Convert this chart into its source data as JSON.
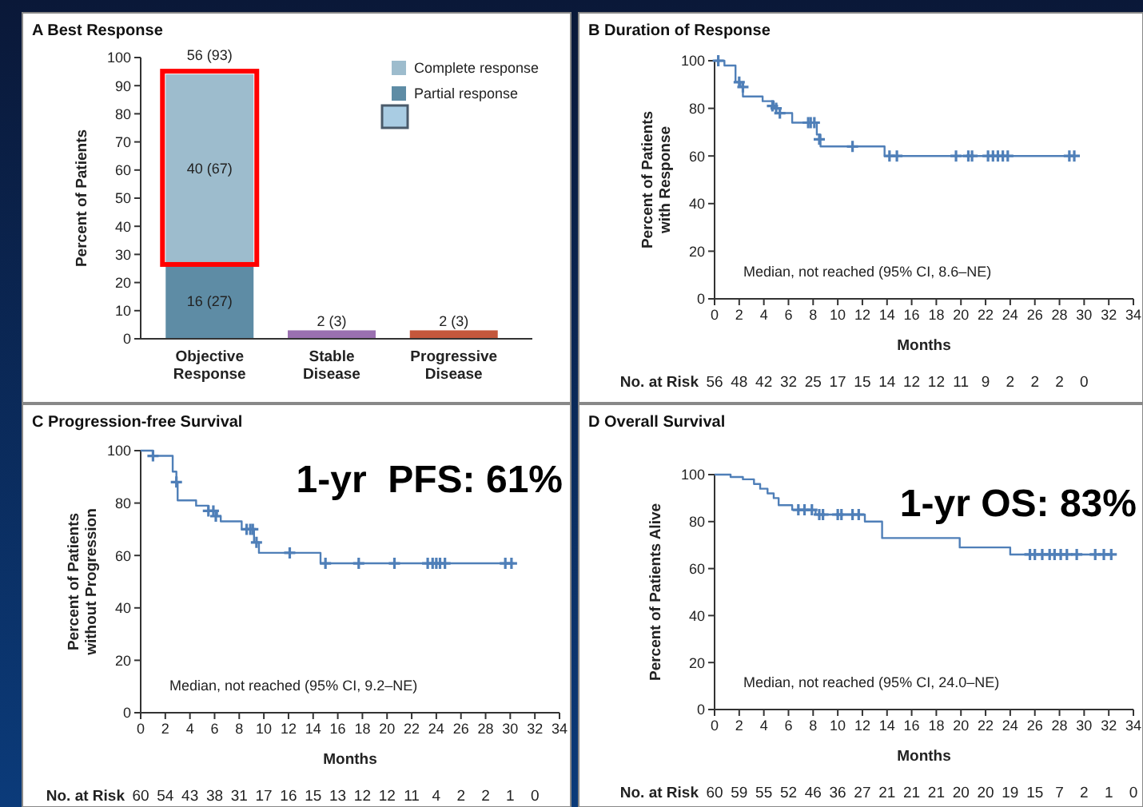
{
  "chart_data": [
    {
      "type": "bar",
      "title": "A Best Response",
      "ylabel": "Percent of Patients",
      "categories": [
        "Objective Response",
        "Stable Disease",
        "Progressive Disease"
      ],
      "stacked": true,
      "ylim": [
        0,
        100
      ],
      "yticks": [
        0,
        10,
        20,
        30,
        40,
        50,
        60,
        70,
        80,
        90,
        100
      ],
      "legend": "top right",
      "series": [
        {
          "name": "Partial response",
          "color": "#5e8ca5",
          "values": [
            27,
            null,
            null
          ],
          "value_labels": [
            "16 (27)",
            null,
            null
          ]
        },
        {
          "name": "Complete response",
          "color": "#9dbccd",
          "values": [
            67,
            null,
            null
          ],
          "value_labels": [
            "40 (67)",
            null,
            null
          ]
        },
        {
          "colors": [
            null,
            "#9a70b0",
            "#c4573c"
          ],
          "values": [
            null,
            3,
            3
          ],
          "value_labels": [
            null,
            "2 (3)",
            "2 (3)"
          ]
        }
      ],
      "totals": [
        "56 (93)",
        null,
        null
      ]
    },
    {
      "type": "step",
      "title": "B Duration of Response",
      "xlabel": "Months",
      "ylabel": "Percent of Patients with Response",
      "xlim": [
        0,
        34
      ],
      "xticks": [
        0,
        2,
        4,
        6,
        8,
        10,
        12,
        14,
        16,
        18,
        20,
        22,
        24,
        26,
        28,
        30,
        32,
        34
      ],
      "ylim": [
        0,
        100
      ],
      "yticks": [
        0,
        20,
        40,
        60,
        80,
        100
      ],
      "annotations": [
        "Median, not reached (95% CI, 8.6–NE)",
        "No. at Risk 56 48 42 32 25 17 15 14 12 12 11 9 2 2 2 0"
      ],
      "series": [
        {
          "type": "step",
          "color": "#4f7fb8",
          "x": [
            0,
            0.8,
            1.7,
            2.1,
            2.3,
            3.9,
            4.8,
            5.3,
            6.3,
            8.3,
            8.6,
            13.8,
            29.3
          ],
          "values": [
            100,
            98,
            91,
            89,
            85,
            83,
            80,
            78,
            74,
            69,
            64,
            60,
            60
          ]
        },
        {
          "type": "scatter",
          "marker": "cross",
          "color": "#4f7fb8",
          "x": [
            0.3,
            2,
            2.3,
            4.7,
            5,
            5.3,
            7.6,
            7.8,
            8.1,
            8.5,
            11.2,
            14.2,
            14.8,
            19.6,
            20.6,
            20.9,
            22.2,
            22.6,
            23,
            23.4,
            23.8,
            28.8,
            29.2
          ],
          "values": [
            100,
            91,
            89,
            81,
            80,
            78,
            74,
            74,
            74,
            67,
            64,
            60,
            60,
            60,
            60,
            60,
            60,
            60,
            60,
            60,
            60,
            60,
            60
          ]
        }
      ]
    },
    {
      "type": "step",
      "title": "C Progression-free Survival",
      "xlabel": "Months",
      "ylabel": "Percent of Patients without Progression",
      "xlim": [
        0,
        34
      ],
      "xticks": [
        0,
        2,
        4,
        6,
        8,
        10,
        12,
        14,
        16,
        18,
        20,
        22,
        24,
        26,
        28,
        30,
        32,
        34
      ],
      "ylim": [
        0,
        100
      ],
      "yticks": [
        0,
        20,
        40,
        60,
        80,
        100
      ],
      "annotations": [
        "Median, not reached (95% CI, 9.2–NE)",
        "No. at Risk 60 54 43 38 31 17 16 15 13 12 12 11 4 2 2 1 0",
        "1-yr  PFS: 61%"
      ],
      "series": [
        {
          "type": "step",
          "color": "#4f7fb8",
          "x": [
            0,
            1,
            2.6,
            2.9,
            3,
            4.5,
            5.5,
            6.2,
            6.5,
            8.2,
            9.2,
            9.6,
            14.6,
            30.3
          ],
          "values": [
            100,
            98,
            92,
            88,
            81,
            79,
            77,
            75,
            73,
            70,
            65,
            61,
            57,
            57
          ]
        },
        {
          "type": "scatter",
          "marker": "cross",
          "color": "#4f7fb8",
          "x": [
            1,
            2.9,
            5.5,
            5.9,
            6.1,
            8.6,
            8.9,
            9.1,
            9.4,
            12.1,
            15,
            17.7,
            20.6,
            23.3,
            23.7,
            24,
            24.3,
            24.7,
            29.6,
            30.1
          ],
          "values": [
            98,
            88,
            77,
            77,
            75,
            70,
            70,
            70,
            65,
            61,
            57,
            57,
            57,
            57,
            57,
            57,
            57,
            57,
            57,
            57
          ]
        }
      ]
    },
    {
      "type": "step",
      "title": "D Overall Survival",
      "xlabel": "Months",
      "ylabel": "Percent of Patients Alive",
      "xlim": [
        0,
        34
      ],
      "xticks": [
        0,
        2,
        4,
        6,
        8,
        10,
        12,
        14,
        16,
        18,
        20,
        22,
        24,
        26,
        28,
        30,
        32,
        34
      ],
      "ylim": [
        0,
        100
      ],
      "yticks": [
        0,
        20,
        40,
        60,
        80,
        100
      ],
      "annotations": [
        "Median, not reached (95% CI, 24.0–NE)",
        "No. at Risk 60 59 55 52 46 36 27 21 21 21 20 20 19 15 7 2 1 0",
        "1-yr OS: 83%"
      ],
      "series": [
        {
          "type": "step",
          "color": "#4f7fb8",
          "x": [
            0,
            1.3,
            2.3,
            3.2,
            3.7,
            4.3,
            4.8,
            5.2,
            6.3,
            8.2,
            12.2,
            13.6,
            19.9,
            24,
            32.3
          ],
          "values": [
            100,
            99,
            98,
            96,
            94,
            92,
            90,
            87,
            85,
            83,
            80,
            73,
            69,
            66,
            66
          ]
        },
        {
          "type": "scatter",
          "marker": "cross",
          "color": "#4f7fb8",
          "x": [
            6.8,
            7.3,
            7.9,
            8.5,
            8.8,
            10,
            10.3,
            11.2,
            11.7,
            25.6,
            26,
            26.6,
            27.2,
            27.6,
            28.1,
            28.6,
            29.4,
            30.9,
            31.6,
            32.2
          ],
          "values": [
            85,
            85,
            85,
            83,
            83,
            83,
            83,
            83,
            83,
            66,
            66,
            66,
            66,
            66,
            66,
            66,
            66,
            66,
            66,
            66
          ]
        }
      ]
    }
  ]
}
